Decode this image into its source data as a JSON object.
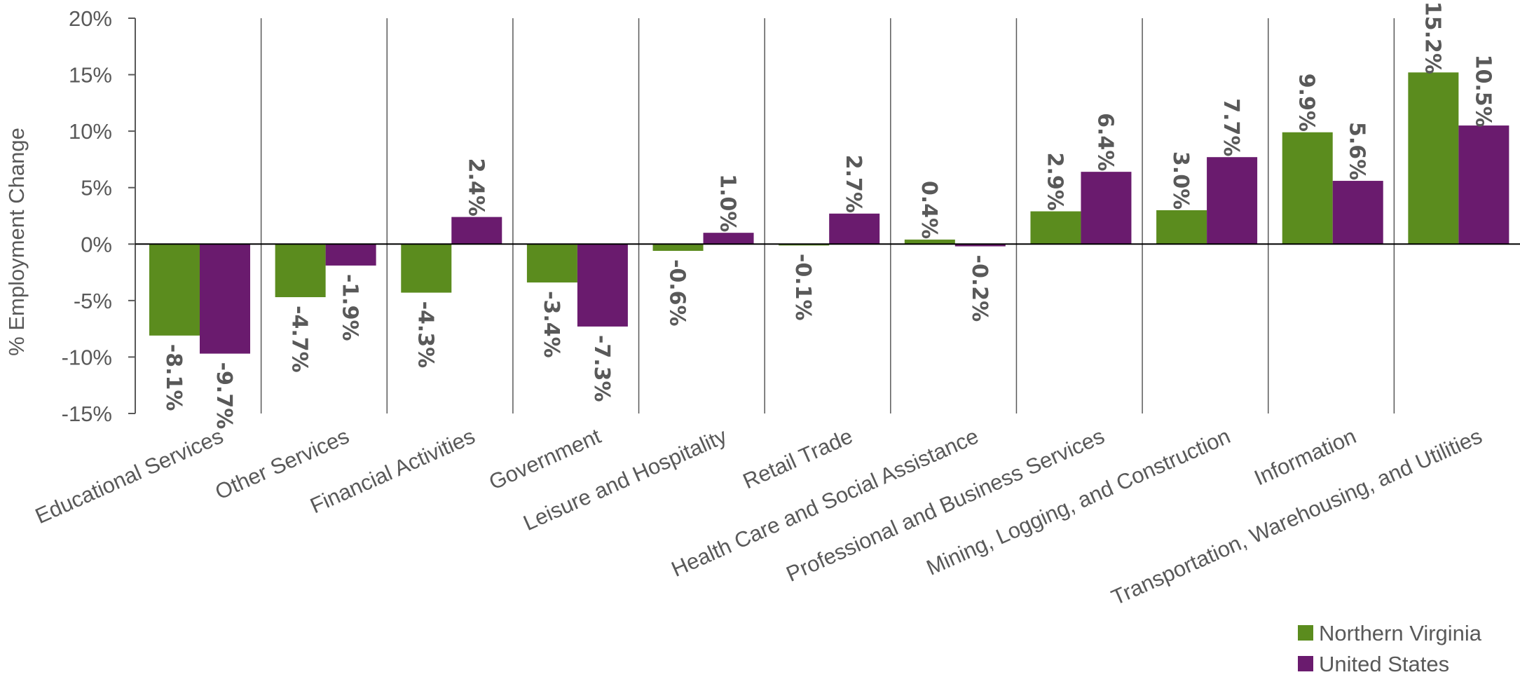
{
  "chart_data": {
    "type": "bar",
    "ylabel": "% Employment Change",
    "xlabel": "",
    "ylim": [
      -15,
      20
    ],
    "ytick_step": 5,
    "ytick_labels": [
      "-15%",
      "-10%",
      "-5%",
      "0%",
      "5%",
      "10%",
      "15%",
      "20%"
    ],
    "categories": [
      "Educational Services",
      "Other Services",
      "Financial Activities",
      "Government",
      "Leisure and Hospitality",
      "Retail Trade",
      "Health Care and Social Assistance",
      "Professional and Business Services",
      "Mining, Logging, and Construction",
      "Information",
      "Transportation, Warehousing, and Utilities"
    ],
    "series": [
      {
        "name": "Northern Virginia",
        "color": "#5B8C1E",
        "values": [
          -8.1,
          -4.7,
          -4.3,
          -3.4,
          -0.6,
          -0.1,
          0.4,
          2.9,
          3.0,
          9.9,
          15.2
        ],
        "labels": [
          "-8.1%",
          "-4.7%",
          "-4.3%",
          "-3.4%",
          "-0.6%",
          "-0.1%",
          "0.4%",
          "2.9%",
          "3.0%",
          "9.9%",
          "15.2%"
        ]
      },
      {
        "name": "United States",
        "color": "#6A1B6E",
        "values": [
          -9.7,
          -1.9,
          2.4,
          -7.3,
          1.0,
          2.7,
          -0.2,
          6.4,
          7.7,
          5.6,
          10.5
        ],
        "labels": [
          "-9.7%",
          "-1.9%",
          "2.4%",
          "-7.3%",
          "1.0%",
          "2.7%",
          "-0.2%",
          "6.4%",
          "7.7%",
          "5.6%",
          "10.5%"
        ]
      }
    ],
    "grid": false,
    "category_separators": true,
    "legend_position": "bottom-right"
  }
}
